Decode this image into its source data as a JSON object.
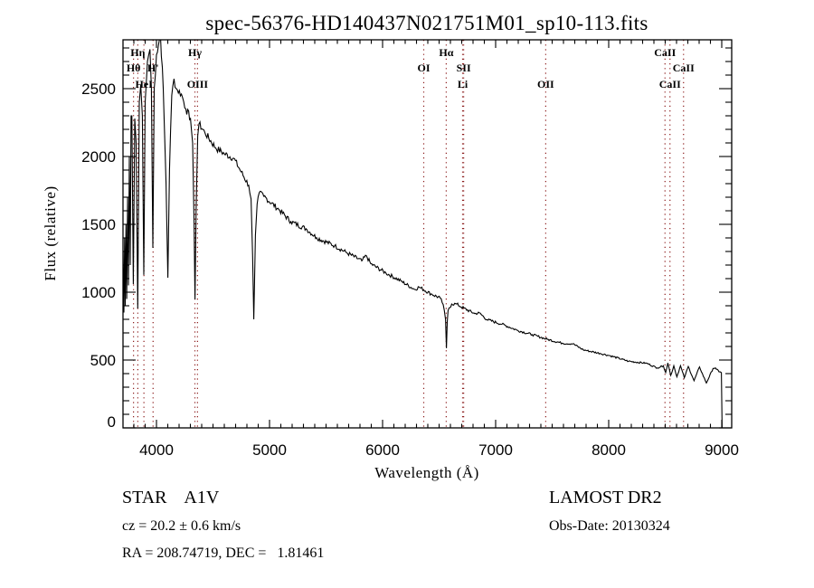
{
  "chart_data": {
    "type": "line",
    "title": "spec-56376-HD140437N021751M01_sp10-113.fits",
    "xlabel": "Wavelength (Å)",
    "ylabel": "Flux (relative)",
    "xlim": [
      3704,
      9088
    ],
    "ylim": [
      0,
      2860
    ],
    "grid": false,
    "x_ticks": [
      4000,
      5000,
      6000,
      7000,
      8000,
      9000
    ],
    "x_tick_labels": [
      "4000",
      "5000",
      "6000",
      "7000",
      "8000",
      "9000"
    ],
    "x_minor_step": 100,
    "y_ticks": [
      0,
      500,
      1000,
      1500,
      2000,
      2500
    ],
    "y_tick_labels": [
      "0",
      "500",
      "1000",
      "1500",
      "2000",
      "2500"
    ],
    "y_minor_step": 100,
    "line_color": "#000000",
    "marker_color": "#8b1a1a",
    "series": [
      {
        "name": "spectrum",
        "x": [
          3705,
          3712,
          3718,
          3724,
          3730,
          3737,
          3745,
          3752,
          3760,
          3768,
          3775,
          3782,
          3795,
          3808,
          3820,
          3834,
          3848,
          3861,
          3875,
          3888,
          3900,
          3920,
          3942,
          3955,
          3968,
          3980,
          4000,
          4035,
          4060,
          4085,
          4101,
          4115,
          4135,
          4155,
          4175,
          4221,
          4260,
          4301,
          4320,
          4333,
          4341,
          4350,
          4365,
          4376,
          4429,
          4523,
          4600,
          4683,
          4749,
          4816,
          4837,
          4850,
          4861,
          4868,
          4875,
          4890,
          4909,
          4949,
          5083,
          5189,
          5323,
          5416,
          5576,
          5683,
          5816,
          5856,
          5896,
          6029,
          6163,
          6283,
          6323,
          6429,
          6509,
          6536,
          6557,
          6565,
          6572,
          6579,
          6611,
          6656,
          6696,
          6816,
          6856,
          6923,
          7056,
          7189,
          7323,
          7456,
          7589,
          7683,
          7776,
          7923,
          8016,
          8176,
          8336,
          8429,
          8483,
          8504,
          8523,
          8549,
          8576,
          8603,
          8635,
          8669,
          8704,
          8755,
          8803,
          8864,
          8923,
          8944,
          8976,
          8997,
          9003
        ],
        "y": [
          1300,
          850,
          1400,
          900,
          1500,
          950,
          1700,
          1050,
          2000,
          1200,
          2300,
          2300,
          1060,
          2280,
          2100,
          880,
          2400,
          2527,
          2300,
          1127,
          2400,
          2700,
          2790,
          2500,
          1327,
          2500,
          2750,
          2900,
          2500,
          1800,
          1107,
          1900,
          2450,
          2573,
          2500,
          2460,
          2350,
          2280,
          2100,
          1500,
          947,
          1600,
          2150,
          2240,
          2175,
          2064,
          2020,
          1987,
          1887,
          1787,
          1687,
          1267,
          800,
          1100,
          1420,
          1650,
          1733,
          1707,
          1609,
          1520,
          1467,
          1402,
          1342,
          1291,
          1231,
          1269,
          1209,
          1142,
          1082,
          1020,
          1038,
          987,
          958,
          909,
          800,
          587,
          780,
          864,
          913,
          913,
          891,
          842,
          847,
          798,
          764,
          720,
          687,
          653,
          624,
          620,
          575,
          549,
          531,
          491,
          476,
          442,
          458,
          408,
          478,
          387,
          458,
          376,
          458,
          369,
          453,
          347,
          449,
          331,
          438,
          442,
          413,
          407,
          0
        ]
      }
    ],
    "line_markers": [
      {
        "label": "Hη",
        "wavelength": 3835
      },
      {
        "label": "Hθ",
        "wavelength": 3797
      },
      {
        "label": "H'",
        "wavelength": 3970
      },
      {
        "label": "HeI",
        "wavelength": 3889
      },
      {
        "label": "Hγ",
        "wavelength": 4340
      },
      {
        "label": "OIII",
        "wavelength": 4363
      },
      {
        "label": "Hα",
        "wavelength": 6563
      },
      {
        "label": "OI",
        "wavelength": 6364
      },
      {
        "label": "SII",
        "wavelength": 6717
      },
      {
        "label": "Li",
        "wavelength": 6708
      },
      {
        "label": "OII",
        "wavelength": 7443
      },
      {
        "label": "CaII",
        "wavelength": 8498
      },
      {
        "label": "CaII",
        "wavelength": 8662
      },
      {
        "label": "CaII",
        "wavelength": 8542
      }
    ]
  },
  "info": {
    "object_type": "STAR    A1V",
    "survey": "LAMOST DR2",
    "redshift": "cz = 20.2 ± 0.6 km/s",
    "obs_date": "Obs-Date: 20130324",
    "coords": "RA = 208.74719, DEC =   1.81461"
  }
}
